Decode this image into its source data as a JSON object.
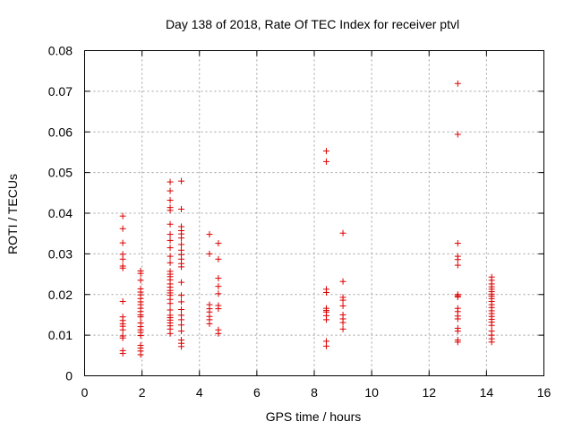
{
  "chart_data": {
    "type": "scatter",
    "title": "Day 138 of 2018, Rate Of TEC Index for receiver ptvl",
    "xlabel": "GPS time / hours",
    "ylabel": "ROTI / TECUs",
    "xlim": [
      0,
      16
    ],
    "ylim": [
      0,
      0.08
    ],
    "grid": true,
    "x_ticks": [
      "0",
      "2",
      "4",
      "6",
      "8",
      "10",
      "12",
      "14",
      "16"
    ],
    "y_ticks": [
      "0",
      "0.01",
      "0.02",
      "0.03",
      "0.04",
      "0.05",
      "0.06",
      "0.07",
      "0.08"
    ],
    "marker": "+",
    "color": "#dd0000",
    "series": [
      {
        "name": "ROTI",
        "points": [
          [
            1.33,
            0.0393
          ],
          [
            1.33,
            0.0362
          ],
          [
            1.33,
            0.0327
          ],
          [
            1.33,
            0.0299
          ],
          [
            1.33,
            0.0287
          ],
          [
            1.33,
            0.027
          ],
          [
            1.33,
            0.0265
          ],
          [
            1.33,
            0.0183
          ],
          [
            1.33,
            0.0145
          ],
          [
            1.33,
            0.0136
          ],
          [
            1.33,
            0.0128
          ],
          [
            1.33,
            0.0122
          ],
          [
            1.33,
            0.0113
          ],
          [
            1.33,
            0.0098
          ],
          [
            1.33,
            0.0093
          ],
          [
            1.33,
            0.0062
          ],
          [
            1.33,
            0.0055
          ],
          [
            1.95,
            0.0258
          ],
          [
            1.95,
            0.0252
          ],
          [
            1.95,
            0.0235
          ],
          [
            1.95,
            0.0214
          ],
          [
            1.95,
            0.0206
          ],
          [
            1.95,
            0.0199
          ],
          [
            1.95,
            0.019
          ],
          [
            1.95,
            0.0182
          ],
          [
            1.95,
            0.0175
          ],
          [
            1.95,
            0.0166
          ],
          [
            1.95,
            0.0158
          ],
          [
            1.95,
            0.015
          ],
          [
            1.95,
            0.0145
          ],
          [
            1.95,
            0.013
          ],
          [
            1.95,
            0.0121
          ],
          [
            1.95,
            0.0113
          ],
          [
            1.95,
            0.0107
          ],
          [
            1.95,
            0.0099
          ],
          [
            1.95,
            0.0075
          ],
          [
            1.95,
            0.0068
          ],
          [
            1.95,
            0.0061
          ],
          [
            1.95,
            0.0052
          ],
          [
            2.98,
            0.0477
          ],
          [
            2.98,
            0.0455
          ],
          [
            2.98,
            0.0432
          ],
          [
            2.98,
            0.0414
          ],
          [
            2.98,
            0.0407
          ],
          [
            2.98,
            0.0373
          ],
          [
            2.98,
            0.0348
          ],
          [
            2.98,
            0.0333
          ],
          [
            2.98,
            0.0315
          ],
          [
            2.98,
            0.0294
          ],
          [
            2.98,
            0.0278
          ],
          [
            2.98,
            0.0257
          ],
          [
            2.98,
            0.025
          ],
          [
            2.98,
            0.0244
          ],
          [
            2.98,
            0.0236
          ],
          [
            2.98,
            0.0226
          ],
          [
            2.98,
            0.0218
          ],
          [
            2.98,
            0.021
          ],
          [
            2.98,
            0.0204
          ],
          [
            2.98,
            0.0198
          ],
          [
            2.98,
            0.0188
          ],
          [
            2.98,
            0.0178
          ],
          [
            2.98,
            0.0162
          ],
          [
            2.98,
            0.0149
          ],
          [
            2.98,
            0.0143
          ],
          [
            2.98,
            0.0137
          ],
          [
            2.98,
            0.013
          ],
          [
            2.98,
            0.0123
          ],
          [
            2.98,
            0.0115
          ],
          [
            2.98,
            0.0104
          ],
          [
            3.37,
            0.0479
          ],
          [
            3.37,
            0.041
          ],
          [
            3.37,
            0.0367
          ],
          [
            3.37,
            0.0357
          ],
          [
            3.37,
            0.0349
          ],
          [
            3.37,
            0.0339
          ],
          [
            3.37,
            0.0323
          ],
          [
            3.37,
            0.0309
          ],
          [
            3.37,
            0.0298
          ],
          [
            3.37,
            0.0287
          ],
          [
            3.37,
            0.0276
          ],
          [
            3.37,
            0.0268
          ],
          [
            3.37,
            0.023
          ],
          [
            3.37,
            0.0198
          ],
          [
            3.37,
            0.0182
          ],
          [
            3.37,
            0.0163
          ],
          [
            3.37,
            0.0149
          ],
          [
            3.37,
            0.0138
          ],
          [
            3.37,
            0.0125
          ],
          [
            3.37,
            0.011
          ],
          [
            3.37,
            0.0088
          ],
          [
            3.37,
            0.008
          ],
          [
            3.37,
            0.0072
          ],
          [
            4.35,
            0.0348
          ],
          [
            4.35,
            0.03
          ],
          [
            4.35,
            0.0175
          ],
          [
            4.35,
            0.0165
          ],
          [
            4.35,
            0.0157
          ],
          [
            4.35,
            0.0146
          ],
          [
            4.35,
            0.0138
          ],
          [
            4.35,
            0.0128
          ],
          [
            4.66,
            0.0326
          ],
          [
            4.66,
            0.0287
          ],
          [
            4.66,
            0.024
          ],
          [
            4.66,
            0.022
          ],
          [
            4.66,
            0.0202
          ],
          [
            4.66,
            0.0173
          ],
          [
            4.66,
            0.0165
          ],
          [
            4.66,
            0.0113
          ],
          [
            4.66,
            0.0104
          ],
          [
            8.42,
            0.0553
          ],
          [
            8.42,
            0.0527
          ],
          [
            8.42,
            0.0213
          ],
          [
            8.42,
            0.0205
          ],
          [
            8.42,
            0.0166
          ],
          [
            8.42,
            0.0161
          ],
          [
            8.42,
            0.0157
          ],
          [
            8.42,
            0.0148
          ],
          [
            8.42,
            0.0138
          ],
          [
            8.42,
            0.0085
          ],
          [
            8.42,
            0.0073
          ],
          [
            9.0,
            0.0351
          ],
          [
            9.0,
            0.0232
          ],
          [
            9.0,
            0.0193
          ],
          [
            9.0,
            0.0186
          ],
          [
            9.0,
            0.0172
          ],
          [
            9.0,
            0.015
          ],
          [
            9.0,
            0.014
          ],
          [
            9.0,
            0.0131
          ],
          [
            9.0,
            0.0115
          ],
          [
            13.0,
            0.0719
          ],
          [
            13.0,
            0.0594
          ],
          [
            13.0,
            0.0326
          ],
          [
            13.0,
            0.0294
          ],
          [
            13.0,
            0.0286
          ],
          [
            13.0,
            0.0272
          ],
          [
            13.0,
            0.02
          ],
          [
            13.0,
            0.0197
          ],
          [
            13.0,
            0.0194
          ],
          [
            13.0,
            0.0166
          ],
          [
            13.0,
            0.0158
          ],
          [
            13.0,
            0.0147
          ],
          [
            13.0,
            0.014
          ],
          [
            13.0,
            0.0117
          ],
          [
            13.0,
            0.011
          ],
          [
            13.0,
            0.0088
          ],
          [
            13.0,
            0.0083
          ],
          [
            14.18,
            0.0243
          ],
          [
            14.18,
            0.0235
          ],
          [
            14.18,
            0.0226
          ],
          [
            14.18,
            0.0219
          ],
          [
            14.18,
            0.0213
          ],
          [
            14.18,
            0.0207
          ],
          [
            14.18,
            0.0201
          ],
          [
            14.18,
            0.0196
          ],
          [
            14.18,
            0.019
          ],
          [
            14.18,
            0.0183
          ],
          [
            14.18,
            0.0175
          ],
          [
            14.18,
            0.0168
          ],
          [
            14.18,
            0.016
          ],
          [
            14.18,
            0.0153
          ],
          [
            14.18,
            0.0146
          ],
          [
            14.18,
            0.0139
          ],
          [
            14.18,
            0.0132
          ],
          [
            14.18,
            0.0124
          ],
          [
            14.18,
            0.011
          ],
          [
            14.18,
            0.01
          ],
          [
            14.18,
            0.0091
          ],
          [
            14.18,
            0.0083
          ]
        ]
      }
    ]
  }
}
